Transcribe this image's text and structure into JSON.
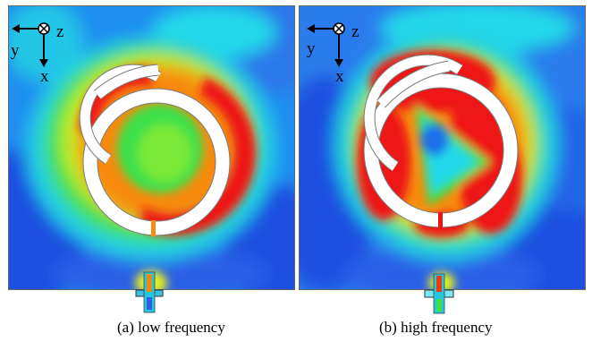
{
  "axes": {
    "y": "y",
    "z": "z",
    "x": "x"
  },
  "panels": [
    {
      "caption": "(a) low frequency"
    },
    {
      "caption": "(b) high frequency"
    }
  ],
  "colors": {
    "background_field": "#1d4fe0",
    "low": "#0a6ff0",
    "cyan": "#22d8e8",
    "green": "#3ee04a",
    "yellow": "#e8f01c",
    "orange": "#f78a10",
    "red": "#ee1414",
    "ring": "#ffffff",
    "outline": "#7a7a7a"
  },
  "icons": [
    "axis-arrow-left-icon",
    "axis-arrow-down-icon",
    "z-into-page-icon"
  ]
}
